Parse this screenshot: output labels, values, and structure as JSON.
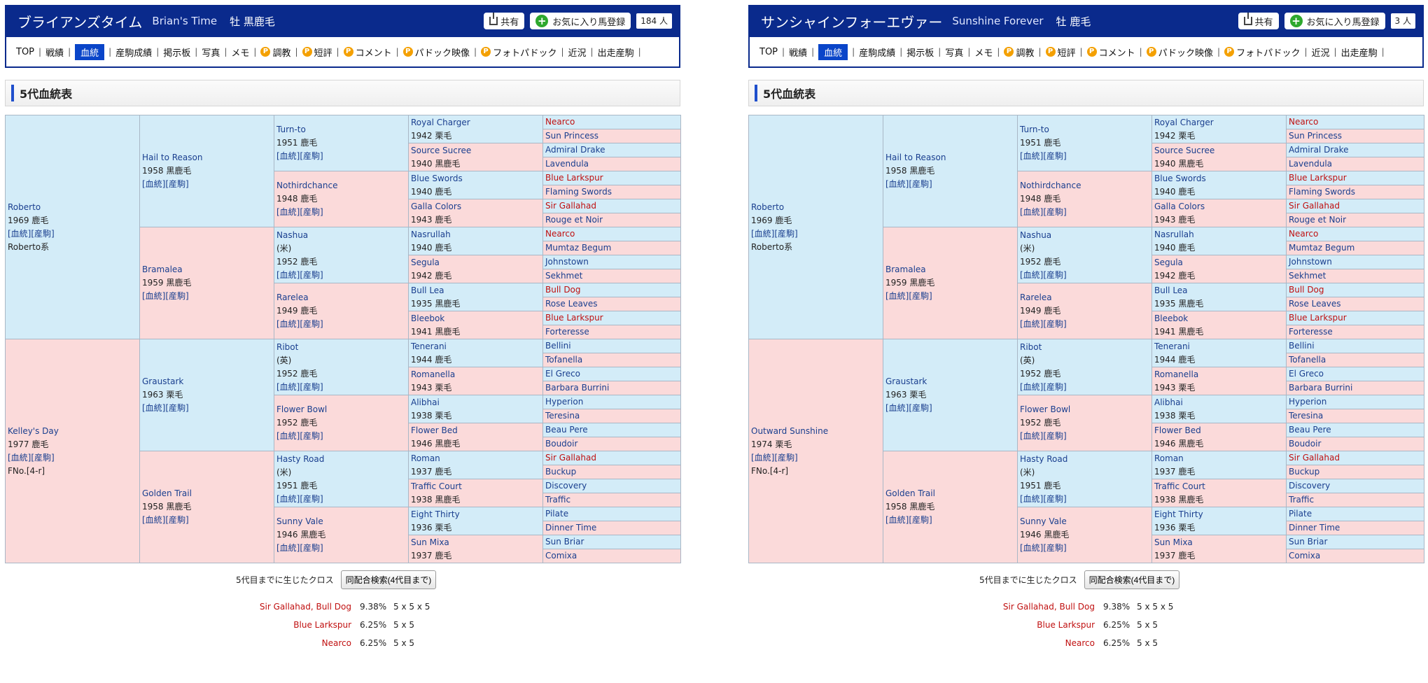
{
  "nav_items": [
    "TOP",
    "戦績",
    "血統",
    "産駒成績",
    "掲示板",
    "写真",
    "メモ",
    "調教",
    "短評",
    "コメント",
    "パドック映像",
    "フォトパドック",
    "近況",
    "出走産駒"
  ],
  "nav_premium": [
    false,
    false,
    false,
    false,
    false,
    false,
    false,
    true,
    true,
    true,
    true,
    true,
    false,
    false
  ],
  "nav_active_index": 2,
  "p_icon_label": "P",
  "share_label": "共有",
  "fav_label": "お気に入り馬登録",
  "section_title": "5代血統表",
  "cross_label": "5代目までに生じたクロス",
  "search_button": "同配合検索(4代目まで)",
  "links_label": "[血統][産駒]",
  "colors": {
    "header": "#0a2a8c",
    "male": "#d3ecf8",
    "female": "#fbdada",
    "link": "#1a3f8f",
    "cross": "#c01010"
  },
  "panels": [
    {
      "title_jp": "ブライアンズタイム",
      "title_en": "Brian's Time",
      "sex_color": "牡  黒鹿毛",
      "fav_count": "184 人",
      "dam": {
        "name": "Kelley's Day",
        "year": "1977 鹿毛",
        "fno": "FNo.[4-r]"
      },
      "crosses": [
        {
          "name": "Sir Gallahad, Bull Dog",
          "pct": "9.38%",
          "gen": "5 x 5 x 5"
        },
        {
          "name": "Blue Larkspur",
          "pct": "6.25%",
          "gen": "5 x 5"
        },
        {
          "name": "Nearco",
          "pct": "6.25%",
          "gen": "5 x 5"
        }
      ]
    },
    {
      "title_jp": "サンシャインフォーエヴァー",
      "title_en": "Sunshine Forever",
      "sex_color": "牡  鹿毛",
      "fav_count": "3 人",
      "dam": {
        "name": "Outward Sunshine",
        "year": "1974 栗毛",
        "fno": "FNo.[4-r]"
      },
      "crosses": [
        {
          "name": "Sir Gallahad, Bull Dog",
          "pct": "9.38%",
          "gen": "5 x 5 x 5"
        },
        {
          "name": "Blue Larkspur",
          "pct": "6.25%",
          "gen": "5 x 5"
        },
        {
          "name": "Nearco",
          "pct": "6.25%",
          "gen": "5 x 5"
        }
      ]
    }
  ],
  "pedigree": {
    "sire": {
      "name": "Roberto",
      "year": "1969 鹿毛",
      "line": "Roberto系"
    },
    "g2": [
      {
        "name": "Hail to Reason",
        "year": "1958 黒鹿毛"
      },
      {
        "name": "Bramalea",
        "year": "1959 黒鹿毛"
      },
      {
        "name": "Graustark",
        "year": "1963 栗毛"
      },
      {
        "name": "Golden Trail",
        "year": "1958 黒鹿毛"
      }
    ],
    "g3": [
      {
        "name": "Turn-to",
        "origin": "",
        "year": "1951 鹿毛"
      },
      {
        "name": "Nothirdchance",
        "origin": "",
        "year": "1948 鹿毛"
      },
      {
        "name": "Nashua",
        "origin": "(米)",
        "year": "1952 鹿毛"
      },
      {
        "name": "Rarelea",
        "origin": "",
        "year": "1949 鹿毛"
      },
      {
        "name": "Ribot",
        "origin": "(英)",
        "year": "1952 鹿毛"
      },
      {
        "name": "Flower Bowl",
        "origin": "",
        "year": "1952 鹿毛"
      },
      {
        "name": "Hasty Road",
        "origin": "(米)",
        "year": "1951 鹿毛"
      },
      {
        "name": "Sunny Vale",
        "origin": "",
        "year": "1946 黒鹿毛"
      }
    ],
    "g4": [
      {
        "name": "Royal Charger",
        "year": "1942 栗毛"
      },
      {
        "name": "Source Sucree",
        "year": "1940 黒鹿毛"
      },
      {
        "name": "Blue Swords",
        "year": "1940 鹿毛"
      },
      {
        "name": "Galla Colors",
        "year": "1943 鹿毛"
      },
      {
        "name": "Nasrullah",
        "year": "1940 鹿毛"
      },
      {
        "name": "Segula",
        "year": "1942 鹿毛"
      },
      {
        "name": "Bull Lea",
        "year": "1935 黒鹿毛"
      },
      {
        "name": "Bleebok",
        "year": "1941 黒鹿毛"
      },
      {
        "name": "Tenerani",
        "year": "1944 鹿毛"
      },
      {
        "name": "Romanella",
        "year": "1943 栗毛"
      },
      {
        "name": "Alibhai",
        "year": "1938 栗毛"
      },
      {
        "name": "Flower Bed",
        "year": "1946 黒鹿毛"
      },
      {
        "name": "Roman",
        "year": "1937 鹿毛"
      },
      {
        "name": "Traffic Court",
        "year": "1938 黒鹿毛"
      },
      {
        "name": "Eight Thirty",
        "year": "1936 栗毛"
      },
      {
        "name": "Sun Mixa",
        "year": "1937 鹿毛"
      }
    ],
    "g5": [
      {
        "name": "Nearco",
        "red": true
      },
      {
        "name": "Sun Princess",
        "red": false
      },
      {
        "name": "Admiral Drake",
        "red": false
      },
      {
        "name": "Lavendula",
        "red": false
      },
      {
        "name": "Blue Larkspur",
        "red": true
      },
      {
        "name": "Flaming Swords",
        "red": false
      },
      {
        "name": "Sir Gallahad",
        "red": true
      },
      {
        "name": "Rouge et Noir",
        "red": false
      },
      {
        "name": "Nearco",
        "red": true
      },
      {
        "name": "Mumtaz Begum",
        "red": false
      },
      {
        "name": "Johnstown",
        "red": false
      },
      {
        "name": "Sekhmet",
        "red": false
      },
      {
        "name": "Bull Dog",
        "red": true
      },
      {
        "name": "Rose Leaves",
        "red": false
      },
      {
        "name": "Blue Larkspur",
        "red": true
      },
      {
        "name": "Forteresse",
        "red": false
      },
      {
        "name": "Bellini",
        "red": false
      },
      {
        "name": "Tofanella",
        "red": false
      },
      {
        "name": "El Greco",
        "red": false
      },
      {
        "name": "Barbara Burrini",
        "red": false
      },
      {
        "name": "Hyperion",
        "red": false
      },
      {
        "name": "Teresina",
        "red": false
      },
      {
        "name": "Beau Pere",
        "red": false
      },
      {
        "name": "Boudoir",
        "red": false
      },
      {
        "name": "Sir Gallahad",
        "red": true
      },
      {
        "name": "Buckup",
        "red": false
      },
      {
        "name": "Discovery",
        "red": false
      },
      {
        "name": "Traffic",
        "red": false
      },
      {
        "name": "Pilate",
        "red": false
      },
      {
        "name": "Dinner Time",
        "red": false
      },
      {
        "name": "Sun Briar",
        "red": false
      },
      {
        "name": "Comixa",
        "red": false
      }
    ]
  }
}
